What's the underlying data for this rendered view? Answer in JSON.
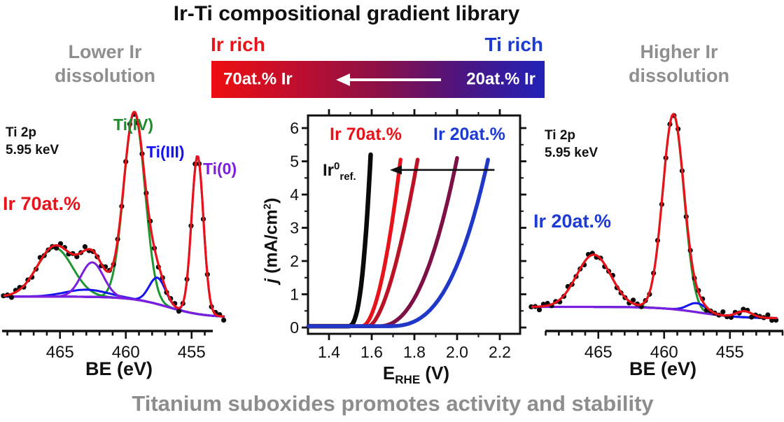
{
  "title": "Ir-Ti compositional gradient library",
  "bottom_caption": "Titanium suboxides promotes activity and stability",
  "side_notes": {
    "left": {
      "line1": "Lower Ir",
      "line2": "dissolution"
    },
    "right": {
      "line1": "Higher Ir",
      "line2": "dissolution"
    }
  },
  "gradient_bar": {
    "left_title": "Ir rich",
    "right_title": "Ti rich",
    "left_value": "70at.% Ir",
    "right_value": "20at.% Ir",
    "left_title_color": "#e8131a",
    "right_title_color": "#1c3ad4",
    "gradient_stops": [
      "#ed0e11",
      "#c00e2e",
      "#8c1046",
      "#4c1480",
      "#2222b8"
    ],
    "arrow_color": "#ffffff",
    "arrow_direction": "left"
  },
  "palette": {
    "fit_red": "#e8131a",
    "data_black": "#0a0a0a",
    "ti4_green": "#1e9632",
    "ti3_blue": "#1412ee",
    "ti0_purple": "#7c1ee0",
    "baseline_violet": "#9330e6",
    "gray_text": "#8d8d8d",
    "axis_black": "#111111"
  },
  "chart_data": [
    {
      "id": "xps-left",
      "type": "line",
      "kind": "HAXPES Ti 2p spectrum with peak fit",
      "corner_label": {
        "line1": "Ti 2p",
        "line2": "5.95 keV"
      },
      "sample_label": {
        "text": "Ir 70at.%",
        "color": "#e8131a"
      },
      "xlabel": "BE (eV)",
      "x_ticks": [
        465,
        460,
        455
      ],
      "x_range_eV": [
        469.4,
        452.4
      ],
      "x_axis_reversed": true,
      "peak_annotations": [
        {
          "text": "Ti(IV)",
          "color": "#1e8c2e"
        },
        {
          "text": "Ti(III)",
          "color": "#1412ee"
        },
        {
          "text": "Ti(0)",
          "color": "#7c1ee0"
        }
      ],
      "fit_components": [
        {
          "label": "Ti(IV)",
          "color": "#1e9632",
          "center_eV": 465.4,
          "height": 0.24,
          "sigma_eV": 1.35
        },
        {
          "label": "Ti(IV)",
          "color": "#1e9632",
          "center_eV": 459.35,
          "height": 0.92,
          "sigma_eV": 0.8
        },
        {
          "label": "Ti(III)",
          "color": "#1412ee",
          "center_eV": 463.0,
          "height": 0.035,
          "sigma_eV": 1.6
        },
        {
          "label": "Ti(III)",
          "color": "#1412ee",
          "center_eV": 457.6,
          "height": 0.13,
          "sigma_eV": 0.62
        },
        {
          "label": "Ti(0)",
          "color": "#7c1ee0",
          "center_eV": 462.55,
          "height": 0.17,
          "sigma_eV": 0.85
        },
        {
          "label": "Ti(0)",
          "color": "#7c1ee0",
          "center_eV": 454.55,
          "height": 0.78,
          "sigma_eV": 0.45
        }
      ],
      "baseline": {
        "high": 0.125,
        "low": 0.022,
        "step_center_eV": 456.8,
        "step_width_eV": 1.4
      }
    },
    {
      "id": "polarization",
      "type": "line",
      "kind": "OER polarization curves",
      "xlabel": {
        "main": "E",
        "sub": "RHE",
        "unit": " (V)"
      },
      "ylabel": {
        "italic": "j",
        "rest": " (mA/cm",
        "sup": "2",
        "close": ")"
      },
      "x_ticks": [
        "1.4",
        "1.6",
        "1.8",
        "2.0",
        "2.2"
      ],
      "y_ticks": [
        0,
        1,
        2,
        3,
        4,
        5,
        6
      ],
      "x_range": [
        1.3,
        2.3
      ],
      "y_range": [
        0,
        6.4
      ],
      "annotations": {
        "red_label": {
          "text": "Ir 70at.%",
          "color": "#e8131a"
        },
        "blue_label": {
          "text": "Ir 20at.%",
          "color": "#1c3ad4"
        },
        "ref_label": {
          "main": "Ir",
          "sup": "0",
          "sub": "ref."
        },
        "arrow": {
          "direction": "left",
          "j_level": 4.74,
          "V_from": 2.175,
          "V_to": 1.685
        }
      },
      "series": [
        {
          "name": "Ir0 ref.",
          "color": "#0a0a0a",
          "V_onset": 1.49,
          "V_at_1mA": 1.545,
          "V_at_5mA": 1.595,
          "j_top": 5.2
        },
        {
          "name": "Ir 70at.%",
          "color": "#e8131a",
          "V_onset": 1.555,
          "V_at_1mA": 1.63,
          "V_at_5mA": 1.735,
          "j_top": 5.05
        },
        {
          "name": "(unlabeled, dark red)",
          "color": "#bb1226",
          "V_onset": 1.585,
          "V_at_1mA": 1.67,
          "V_at_5mA": 1.815,
          "j_top": 5.05
        },
        {
          "name": "(unlabeled, dark purple)",
          "color": "#7d1146",
          "V_onset": 1.63,
          "V_at_1mA": 1.81,
          "V_at_5mA": 2.0,
          "j_top": 5.1
        },
        {
          "name": "Ir 20at.%",
          "color": "#2038c8",
          "V_onset": 1.67,
          "V_at_1mA": 1.93,
          "V_at_5mA": 2.145,
          "j_top": 5.05
        }
      ]
    },
    {
      "id": "xps-right",
      "type": "line",
      "kind": "HAXPES Ti 2p spectrum with peak fit",
      "corner_label": {
        "line1": "Ti 2p",
        "line2": "5.95 keV"
      },
      "sample_label": {
        "text": "Ir 20at.%",
        "color": "#1c3ad4"
      },
      "xlabel": "BE (eV)",
      "x_ticks": [
        465,
        460,
        455
      ],
      "x_range_eV": [
        470.2,
        451.3
      ],
      "x_axis_reversed": true,
      "fit_components": [
        {
          "label": "Ti(IV)",
          "color": "#1e9632",
          "center_eV": 465.35,
          "height": 0.26,
          "sigma_eV": 1.3
        },
        {
          "label": "Ti(IV)",
          "color": "#1e9632",
          "center_eV": 459.3,
          "height": 0.97,
          "sigma_eV": 0.8
        },
        {
          "label": "Ti(III)",
          "color": "#1412ee",
          "center_eV": 457.5,
          "height": 0.045,
          "sigma_eV": 0.7
        },
        {
          "label": "Ti(0)",
          "color": "#7c1ee0",
          "center_eV": 453.9,
          "height": 0.03,
          "sigma_eV": 0.6
        }
      ],
      "baseline": {
        "high": 0.075,
        "low": 0.018,
        "step_center_eV": 457.3,
        "step_width_eV": 1.5
      }
    }
  ]
}
